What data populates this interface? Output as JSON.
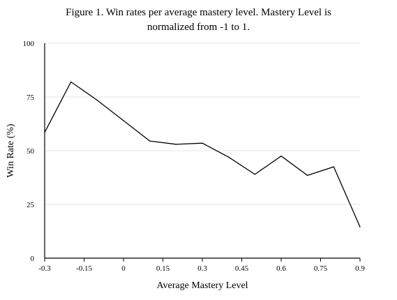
{
  "chart_data": {
    "type": "line",
    "title": "Figure 1.  Win rates per average mastery level. Mastery Level is\nnormalized from -1 to 1.",
    "xlabel": "Average Mastery Level",
    "ylabel": "Win Rate (%)",
    "xlim": [
      -0.3,
      0.9
    ],
    "ylim": [
      0,
      100
    ],
    "x_ticks": [
      -0.3,
      -0.15,
      0,
      0.15,
      0.3,
      0.45,
      0.6,
      0.75,
      0.9
    ],
    "x_tick_labels": [
      "-0.3",
      "-0.15",
      "0",
      "0.15",
      "0.3",
      "0.45",
      "0.6",
      "0.75",
      "0.9"
    ],
    "y_ticks": [
      0,
      25,
      50,
      75,
      100
    ],
    "y_tick_labels": [
      "0",
      "25",
      "50",
      "75",
      "100"
    ],
    "grid": "horizontal",
    "series": [
      {
        "color": "#000000",
        "x": [
          -0.3,
          -0.2,
          -0.1,
          0.0,
          0.1,
          0.2,
          0.3,
          0.4,
          0.5,
          0.6,
          0.7,
          0.8,
          0.9
        ],
        "y": [
          58.5,
          82,
          73.5,
          64,
          54.5,
          53,
          53.5,
          47,
          39,
          47.5,
          38.5,
          42.5,
          14.5
        ]
      }
    ]
  }
}
